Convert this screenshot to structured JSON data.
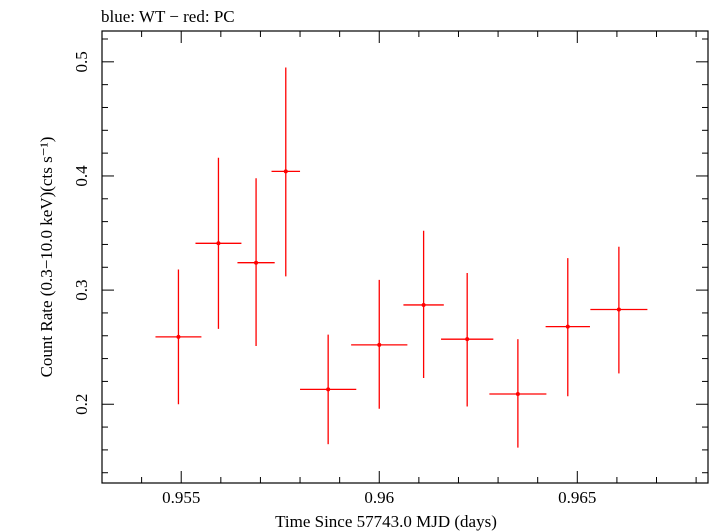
{
  "header": {
    "title": "blue: WT − red: PC"
  },
  "chart_data": {
    "type": "scatter",
    "title": "blue: WT − red: PC",
    "xlabel": "Time Since 57743.0 MJD (days)",
    "ylabel": "Count Rate (0.3−10.0 keV)(cts s⁻¹)",
    "xlim": [
      0.953,
      0.9683
    ],
    "ylim": [
      0.131,
      0.527
    ],
    "x_ticks": [
      {
        "value": 0.955,
        "label": "0.955"
      },
      {
        "value": 0.96,
        "label": "0.96"
      },
      {
        "value": 0.965,
        "label": "0.965"
      }
    ],
    "y_ticks": [
      {
        "value": 0.2,
        "label": "0.2"
      },
      {
        "value": 0.3,
        "label": "0.3"
      },
      {
        "value": 0.4,
        "label": "0.4"
      },
      {
        "value": 0.5,
        "label": "0.5"
      }
    ],
    "grid": false,
    "color": "#ff0000",
    "series": [
      {
        "points": [
          {
            "x": 0.95493,
            "xerr": 0.00058,
            "y": 0.259,
            "ylo": 0.2,
            "yhi": 0.318
          },
          {
            "x": 0.95594,
            "xerr": 0.00058,
            "y": 0.341,
            "ylo": 0.266,
            "yhi": 0.416
          },
          {
            "x": 0.95689,
            "xerr": 0.00047,
            "y": 0.324,
            "ylo": 0.251,
            "yhi": 0.398
          },
          {
            "x": 0.95764,
            "xerr": 0.00036,
            "y": 0.404,
            "ylo": 0.312,
            "yhi": 0.495
          },
          {
            "x": 0.95871,
            "xerr": 0.00071,
            "y": 0.213,
            "ylo": 0.165,
            "yhi": 0.261
          },
          {
            "x": 0.96,
            "xerr": 0.00071,
            "y": 0.252,
            "ylo": 0.196,
            "yhi": 0.309
          },
          {
            "x": 0.96112,
            "xerr": 0.00051,
            "y": 0.287,
            "ylo": 0.223,
            "yhi": 0.352
          },
          {
            "x": 0.96222,
            "xerr": 0.00066,
            "y": 0.257,
            "ylo": 0.198,
            "yhi": 0.315
          },
          {
            "x": 0.9635,
            "xerr": 0.00072,
            "y": 0.209,
            "ylo": 0.162,
            "yhi": 0.257
          },
          {
            "x": 0.96476,
            "xerr": 0.00056,
            "y": 0.268,
            "ylo": 0.207,
            "yhi": 0.328
          },
          {
            "x": 0.96605,
            "xerr": 0.00072,
            "y": 0.283,
            "ylo": 0.227,
            "yhi": 0.338
          }
        ]
      }
    ]
  }
}
